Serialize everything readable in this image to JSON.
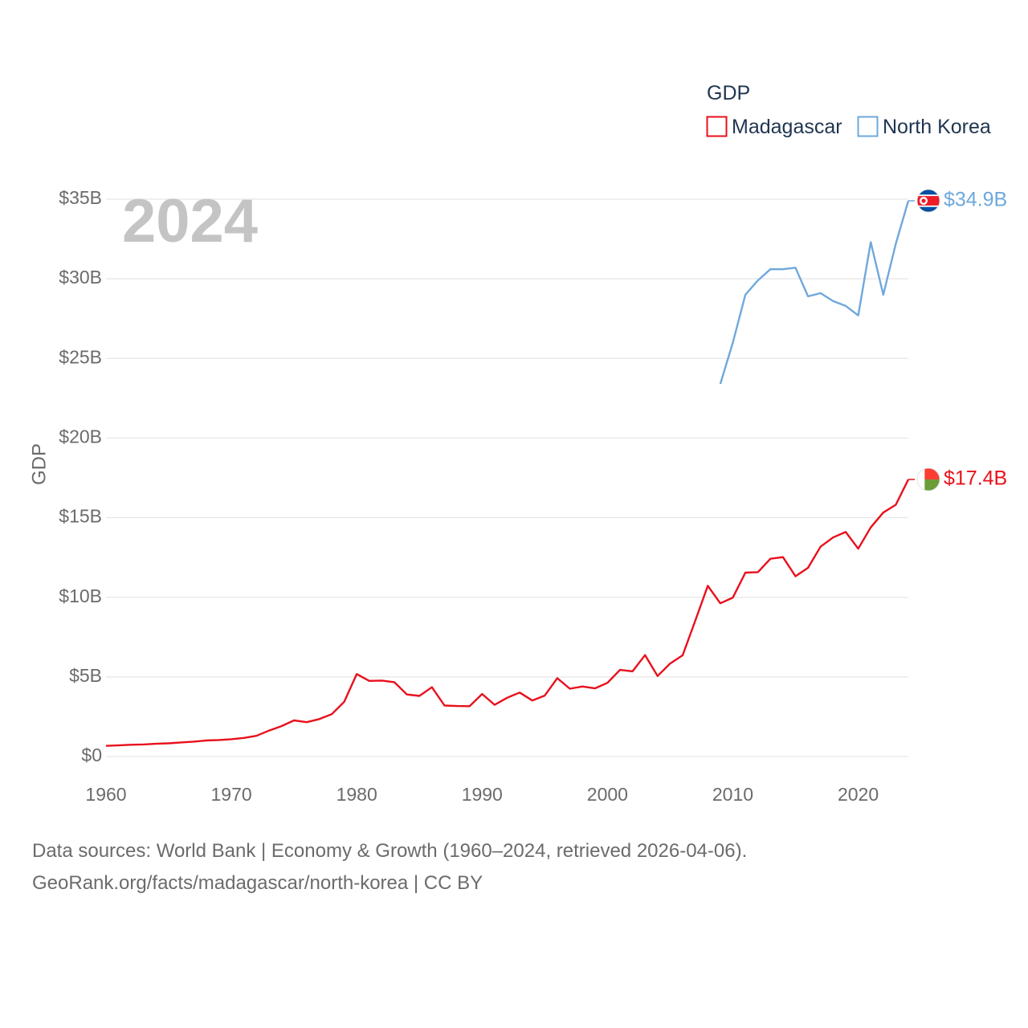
{
  "chart_data": {
    "type": "line",
    "ylabel": "GDP",
    "xlabel": "",
    "year_overlay": "2024",
    "legend": {
      "title": "GDP",
      "position": "top-right"
    },
    "xlim": [
      1960,
      2024
    ],
    "ylim": [
      0,
      35
    ],
    "x_ticks": [
      1960,
      1970,
      1980,
      1990,
      2000,
      2010,
      2020
    ],
    "y_ticks": [
      {
        "value": 0,
        "label": "$0"
      },
      {
        "value": 5,
        "label": "$5B"
      },
      {
        "value": 10,
        "label": "$10B"
      },
      {
        "value": 15,
        "label": "$15B"
      },
      {
        "value": 20,
        "label": "$20B"
      },
      {
        "value": 25,
        "label": "$25B"
      },
      {
        "value": 30,
        "label": "$30B"
      },
      {
        "value": 35,
        "label": "$35B"
      }
    ],
    "grid": true,
    "series": [
      {
        "name": "Madagascar",
        "color": "#e8101c",
        "end_label": "$17.4B",
        "flag": "madagascar-flag",
        "x": [
          1960,
          1961,
          1962,
          1963,
          1964,
          1965,
          1966,
          1967,
          1968,
          1969,
          1970,
          1971,
          1972,
          1973,
          1974,
          1975,
          1976,
          1977,
          1978,
          1979,
          1980,
          1981,
          1982,
          1983,
          1984,
          1985,
          1986,
          1987,
          1988,
          1989,
          1990,
          1991,
          1992,
          1993,
          1994,
          1995,
          1996,
          1997,
          1998,
          1999,
          2000,
          2001,
          2002,
          2003,
          2004,
          2005,
          2006,
          2007,
          2008,
          2009,
          2010,
          2011,
          2012,
          2013,
          2014,
          2015,
          2016,
          2017,
          2018,
          2019,
          2020,
          2021,
          2022,
          2023,
          2024
        ],
        "values": [
          0.67,
          0.7,
          0.74,
          0.76,
          0.8,
          0.83,
          0.89,
          0.94,
          1.01,
          1.04,
          1.09,
          1.17,
          1.3,
          1.63,
          1.91,
          2.27,
          2.16,
          2.35,
          2.66,
          3.44,
          5.18,
          4.75,
          4.77,
          4.67,
          3.9,
          3.81,
          4.35,
          3.2,
          3.17,
          3.16,
          3.93,
          3.25,
          3.69,
          4.02,
          3.52,
          3.83,
          4.92,
          4.26,
          4.4,
          4.28,
          4.63,
          5.44,
          5.35,
          6.37,
          5.06,
          5.84,
          6.36,
          8.52,
          10.72,
          9.62,
          9.98,
          11.55,
          11.58,
          12.42,
          12.52,
          11.32,
          11.85,
          13.18,
          13.76,
          14.1,
          13.05,
          14.39,
          15.32,
          15.81,
          17.4
        ]
      },
      {
        "name": "North Korea",
        "color": "#6fa8dc",
        "end_label": "$34.9B",
        "flag": "north-korea-flag",
        "x": [
          2009,
          2010,
          2011,
          2012,
          2013,
          2014,
          2015,
          2016,
          2017,
          2018,
          2019,
          2020,
          2021,
          2022,
          2023,
          2024
        ],
        "values": [
          23.4,
          26.0,
          29.0,
          29.9,
          30.6,
          30.6,
          30.7,
          28.9,
          29.1,
          28.6,
          28.3,
          27.7,
          32.3,
          29.0,
          32.2,
          34.9
        ]
      }
    ]
  },
  "footer": {
    "line1": "Data sources: World Bank | Economy & Growth (1960–2024, retrieved 2026-04-06).",
    "line2": "GeoRank.org/facts/madagascar/north-korea | CC BY"
  }
}
